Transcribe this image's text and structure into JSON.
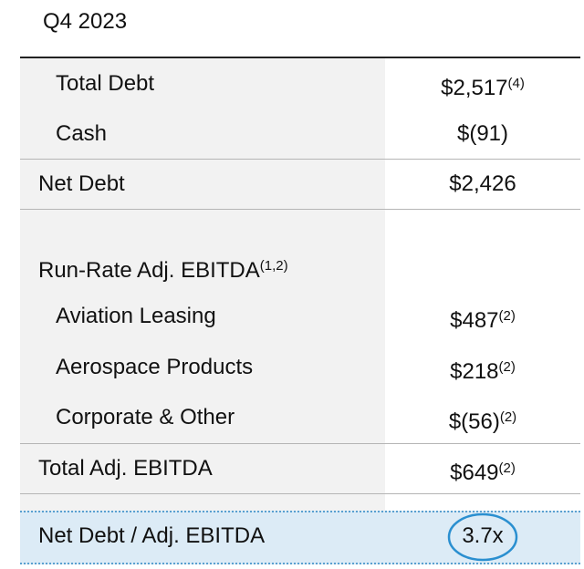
{
  "header": {
    "title": "Q4 2023"
  },
  "table": {
    "rows": [
      {
        "label": "Total Debt",
        "value": "$2,517",
        "note": "(4)"
      },
      {
        "label": "Cash",
        "value": "$(91)"
      },
      {
        "label": "Net Debt",
        "value": "$2,426"
      },
      {
        "label": "Run-Rate Adj. EBITDA",
        "note": "(1,2)"
      },
      {
        "label": "Aviation Leasing",
        "value": "$487",
        "note": "(2)"
      },
      {
        "label": "Aerospace Products",
        "value": "$218",
        "note": "(2)"
      },
      {
        "label": "Corporate & Other",
        "value": "$(56)",
        "note": "(2)"
      },
      {
        "label": "Total Adj. EBITDA",
        "value": "$649",
        "note": "(2)"
      },
      {
        "label": "Net Debt / Adj. EBITDA",
        "value": "3.7x"
      }
    ]
  }
}
